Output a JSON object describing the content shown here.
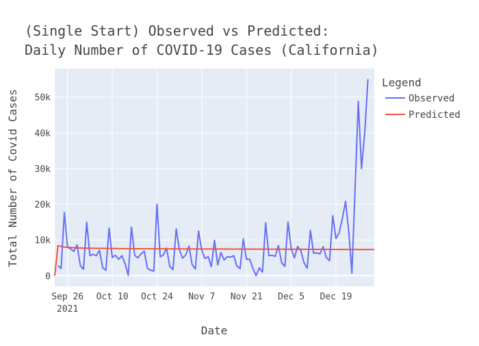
{
  "chart_data": {
    "type": "line",
    "title_lines": [
      "(Single Start) Observed vs Predicted:",
      "Daily Number of COVID-19 Cases (California)"
    ],
    "xlabel": "Date",
    "ylabel": "Total Number of Covid Cases",
    "x_tick_labels": [
      {
        "date": "2021-09-26",
        "label": "Sep 26",
        "sublabel": "2021"
      },
      {
        "date": "2021-10-10",
        "label": "Oct 10",
        "sublabel": ""
      },
      {
        "date": "2021-10-24",
        "label": "Oct 24",
        "sublabel": ""
      },
      {
        "date": "2021-11-07",
        "label": "Nov 7",
        "sublabel": ""
      },
      {
        "date": "2021-11-21",
        "label": "Nov 21",
        "sublabel": ""
      },
      {
        "date": "2021-12-05",
        "label": "Dec 5",
        "sublabel": ""
      },
      {
        "date": "2021-12-19",
        "label": "Dec 19",
        "sublabel": ""
      }
    ],
    "y_ticks": [
      0,
      10000,
      20000,
      30000,
      40000,
      50000
    ],
    "y_tick_labels": [
      "0",
      "10k",
      "20k",
      "30k",
      "40k",
      "50k"
    ],
    "xlim": [
      "2021-09-22",
      "2021-12-31"
    ],
    "ylim": [
      -3000,
      58000
    ],
    "grid": true,
    "legend_title": "Legend",
    "legend_position": "top-right outside",
    "colors": {
      "plot_background": "#e5ecf6",
      "grid": "#ffffff",
      "observed": "#636efa",
      "predicted": "#ef553b",
      "text": "#444444"
    },
    "series": [
      {
        "name": "Observed",
        "color": "#636efa",
        "x_start": "2021-09-23",
        "values": [
          2800,
          2000,
          17700,
          8000,
          7500,
          6800,
          8600,
          2800,
          1800,
          15000,
          5600,
          6000,
          5600,
          7100,
          2200,
          1500,
          13300,
          5100,
          5700,
          4600,
          5600,
          3400,
          100,
          13600,
          5700,
          5000,
          6100,
          6900,
          2100,
          1500,
          1300,
          20000,
          5300,
          5800,
          7700,
          2600,
          1700,
          13100,
          7300,
          4900,
          5800,
          8300,
          3100,
          1900,
          12500,
          7100,
          4800,
          5300,
          2500,
          9900,
          3000,
          6500,
          4400,
          5300,
          5200,
          5600,
          2700,
          2000,
          10300,
          4600,
          4600,
          2100,
          0,
          2200,
          1000,
          14800,
          5600,
          5700,
          5400,
          8400,
          3600,
          2600,
          15000,
          7500,
          5000,
          8200,
          7000,
          3600,
          2100,
          12700,
          6300,
          6400,
          6100,
          8100,
          5100,
          4200,
          16800,
          10400,
          12000,
          16000,
          20800,
          12500,
          700,
          25000,
          48800,
          30000,
          40000,
          55000
        ]
      },
      {
        "name": "Predicted",
        "color": "#ef553b",
        "points": [
          {
            "x": "2021-09-22",
            "y": 0
          },
          {
            "x": "2021-09-23",
            "y": 8400
          },
          {
            "x": "2021-09-25",
            "y": 8000
          },
          {
            "x": "2021-10-01",
            "y": 7700
          },
          {
            "x": "2021-10-15",
            "y": 7550
          },
          {
            "x": "2021-11-15",
            "y": 7450
          },
          {
            "x": "2021-12-31",
            "y": 7300
          }
        ]
      }
    ]
  }
}
